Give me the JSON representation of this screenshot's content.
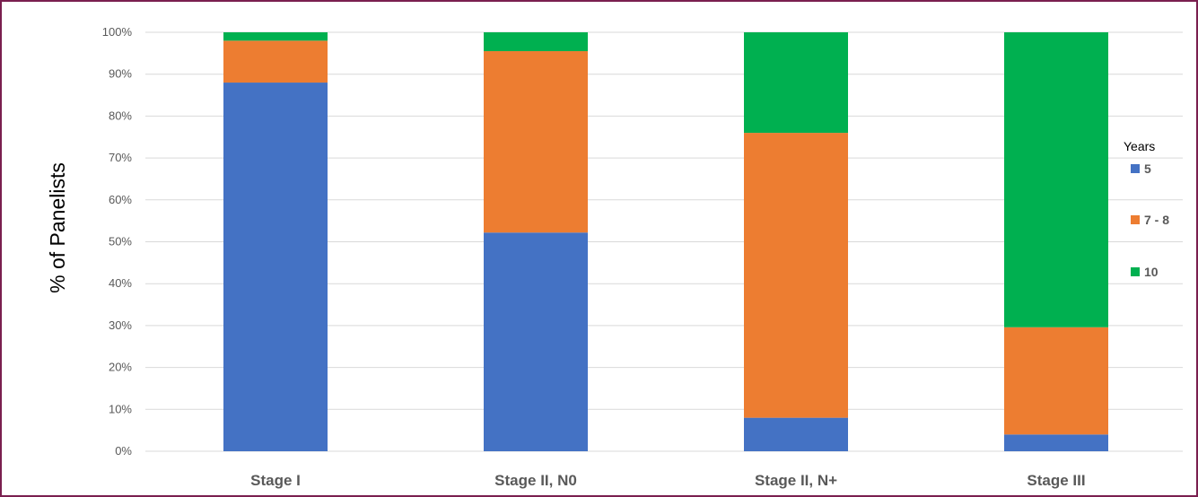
{
  "chart_data": {
    "type": "bar",
    "stacked": true,
    "title": "",
    "xlabel": "",
    "ylabel": "% of Panelists",
    "ylim": [
      0,
      100
    ],
    "y_ticks": [
      "0%",
      "10%",
      "20%",
      "30%",
      "40%",
      "50%",
      "60%",
      "70%",
      "80%",
      "90%",
      "100%"
    ],
    "categories": [
      "Stage I",
      "Stage II, N0",
      "Stage II, N+",
      "Stage III"
    ],
    "legend_title": "Years",
    "legend_position": "right",
    "grid": true,
    "series": [
      {
        "name": "5",
        "color": "#4472c4",
        "values": [
          88,
          52.2,
          8,
          4
        ]
      },
      {
        "name": "7 - 8",
        "color": "#ed7d31",
        "values": [
          10,
          43.3,
          68,
          25.6
        ]
      },
      {
        "name": "10",
        "color": "#00b050",
        "values": [
          2,
          4.5,
          24,
          70.4
        ]
      }
    ]
  }
}
